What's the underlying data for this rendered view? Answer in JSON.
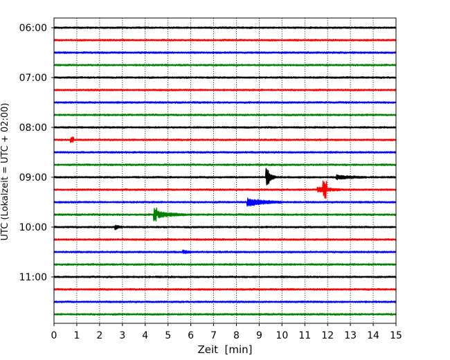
{
  "chart_data": {
    "type": "line",
    "xlabel": "Zeit  [min]",
    "ylabel": "UTC (Lokalzeit = UTC + 02:00)",
    "xlim": [
      0,
      15
    ],
    "x_ticks": [
      0,
      1,
      2,
      3,
      4,
      5,
      6,
      7,
      8,
      9,
      10,
      11,
      12,
      13,
      14,
      15
    ],
    "y_ticks": [
      "06:00",
      "07:00",
      "08:00",
      "09:00",
      "10:00",
      "11:00"
    ],
    "grid": "vertical dotted",
    "colors": [
      "#000000",
      "#ff0000",
      "#0000ff",
      "#008000"
    ],
    "rows": [
      {
        "start": "06:00",
        "color": "#000000",
        "events": []
      },
      {
        "start": "06:15",
        "color": "#ff0000",
        "events": []
      },
      {
        "start": "06:30",
        "color": "#0000ff",
        "events": []
      },
      {
        "start": "06:45",
        "color": "#008000",
        "events": []
      },
      {
        "start": "07:00",
        "color": "#000000",
        "events": []
      },
      {
        "start": "07:15",
        "color": "#ff0000",
        "events": []
      },
      {
        "start": "07:30",
        "color": "#0000ff",
        "events": []
      },
      {
        "start": "07:45",
        "color": "#008000",
        "events": []
      },
      {
        "start": "08:00",
        "color": "#000000",
        "events": []
      },
      {
        "start": "08:15",
        "color": "#ff0000",
        "events": [
          {
            "t": 0.75,
            "amp": 0.3,
            "dur": 0.1
          }
        ]
      },
      {
        "start": "08:30",
        "color": "#0000ff",
        "events": []
      },
      {
        "start": "08:45",
        "color": "#008000",
        "events": []
      },
      {
        "start": "09:00",
        "color": "#000000",
        "events": [
          {
            "t": 9.35,
            "amp": 1.2,
            "dur": 0.35
          },
          {
            "t": 12.4,
            "amp": 0.25,
            "dur": 1.3
          }
        ]
      },
      {
        "start": "09:15",
        "color": "#ff0000",
        "events": [
          {
            "t": 11.6,
            "amp": 0.35,
            "dur": 1.0
          },
          {
            "t": 11.85,
            "amp": 1.0,
            "dur": 0.1
          }
        ]
      },
      {
        "start": "09:30",
        "color": "#0000ff",
        "events": [
          {
            "t": 8.5,
            "amp": 0.55,
            "dur": 1.5
          }
        ]
      },
      {
        "start": "09:45",
        "color": "#008000",
        "events": [
          {
            "t": 4.4,
            "amp": 0.95,
            "dur": 0.12
          },
          {
            "t": 4.6,
            "amp": 0.4,
            "dur": 1.2
          }
        ]
      },
      {
        "start": "10:00",
        "color": "#000000",
        "events": [
          {
            "t": 2.7,
            "amp": 0.3,
            "dur": 0.3
          }
        ]
      },
      {
        "start": "10:15",
        "color": "#ff0000",
        "events": []
      },
      {
        "start": "10:30",
        "color": "#0000ff",
        "events": [
          {
            "t": 5.7,
            "amp": 0.2,
            "dur": 0.4
          }
        ]
      },
      {
        "start": "10:45",
        "color": "#008000",
        "events": []
      },
      {
        "start": "11:00",
        "color": "#000000",
        "events": []
      },
      {
        "start": "11:15",
        "color": "#ff0000",
        "events": []
      },
      {
        "start": "11:30",
        "color": "#0000ff",
        "events": []
      },
      {
        "start": "11:45",
        "color": "#008000",
        "events": []
      }
    ]
  }
}
